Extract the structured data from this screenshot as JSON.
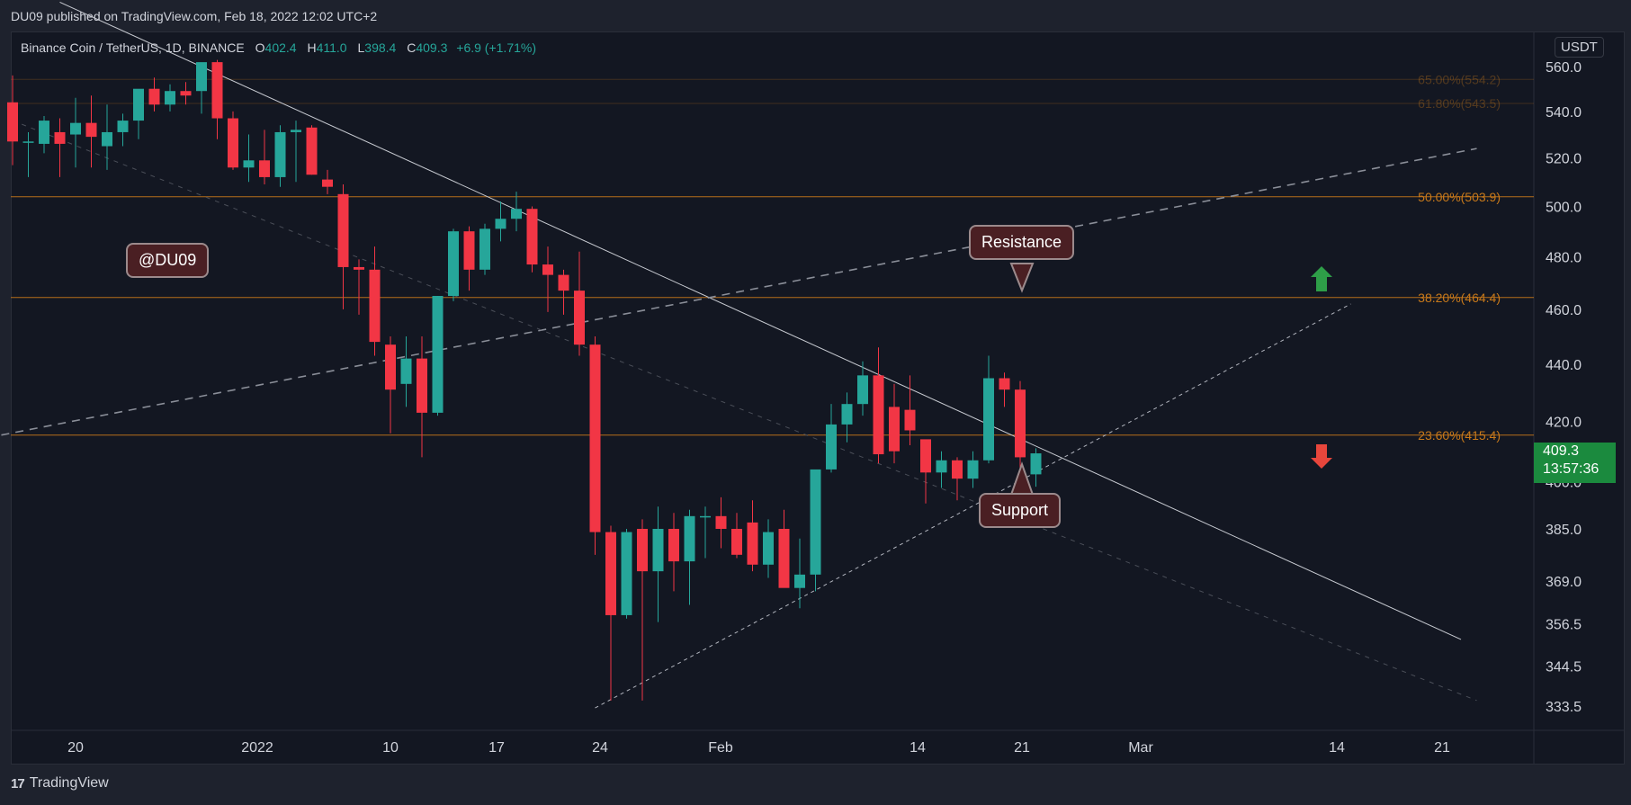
{
  "header": {
    "published": "DU09 published on TradingView.com, Feb 18, 2022 12:02 UTC+2",
    "symbol": "Binance Coin / TetherUS, 1D, BINANCE",
    "ohlc": {
      "o_label": "O",
      "o": "402.4",
      "h_label": "H",
      "h": "411.0",
      "l_label": "L",
      "l": "398.4",
      "c_label": "C",
      "c": "409.3",
      "change": "+6.9 (+1.71%)"
    }
  },
  "currency": "USDT",
  "footer": {
    "brand": "TradingView"
  },
  "watermark": "@DU09",
  "annotations": {
    "resistance": "Resistance",
    "support": "Support"
  },
  "last_price": {
    "price": "409.3",
    "countdown": "13:57:36"
  },
  "colors": {
    "up": "#26a69a",
    "down": "#f23645",
    "fib": "#c8791a",
    "background": "#131722"
  },
  "icons": {
    "up_arrow": "arrow-up-icon",
    "down_arrow": "arrow-down-icon"
  },
  "chart_data": {
    "type": "candlestick",
    "title": "Binance Coin / TetherUS, 1D, BINANCE",
    "xlabel": "",
    "ylabel": "",
    "y_scale": "log",
    "x_ticks": [
      "20",
      "2022",
      "10",
      "17",
      "24",
      "Feb",
      "14",
      "21",
      "Mar",
      "14",
      "21"
    ],
    "y_ticks": [
      "560.0",
      "540.0",
      "520.0",
      "500.0",
      "480.0",
      "460.0",
      "440.0",
      "420.0",
      "400.0",
      "385.0",
      "369.0",
      "356.5",
      "344.5",
      "333.5"
    ],
    "fib_levels": [
      {
        "label": "65.00%(554.2)",
        "value": 554.2
      },
      {
        "label": "61.80%(543.5)",
        "value": 543.5
      },
      {
        "label": "50.00%(503.9)",
        "value": 503.9
      },
      {
        "label": "38.20%(464.4)",
        "value": 464.4
      },
      {
        "label": "23.60%(415.4)",
        "value": 415.4
      }
    ],
    "candles": [
      {
        "date": "2021-12-17",
        "o": 544,
        "h": 556,
        "l": 517,
        "c": 527
      },
      {
        "date": "2021-12-18",
        "o": 527,
        "h": 531,
        "l": 512,
        "c": 527
      },
      {
        "date": "2021-12-19",
        "o": 526,
        "h": 538,
        "l": 522,
        "c": 536
      },
      {
        "date": "2021-12-20",
        "o": 531,
        "h": 537,
        "l": 512,
        "c": 526
      },
      {
        "date": "2021-12-21",
        "o": 530,
        "h": 546,
        "l": 516,
        "c": 535
      },
      {
        "date": "2021-12-22",
        "o": 535,
        "h": 547,
        "l": 516,
        "c": 529
      },
      {
        "date": "2021-12-23",
        "o": 525,
        "h": 543,
        "l": 515,
        "c": 531
      },
      {
        "date": "2021-12-24",
        "o": 531,
        "h": 539,
        "l": 525,
        "c": 536
      },
      {
        "date": "2021-12-25",
        "o": 536,
        "h": 548,
        "l": 528,
        "c": 550
      },
      {
        "date": "2021-12-26",
        "o": 550,
        "h": 555,
        "l": 540,
        "c": 543
      },
      {
        "date": "2021-12-27",
        "o": 543,
        "h": 552,
        "l": 540,
        "c": 549
      },
      {
        "date": "2021-12-28",
        "o": 549,
        "h": 553,
        "l": 543,
        "c": 547
      },
      {
        "date": "2021-12-29",
        "o": 549,
        "h": 561,
        "l": 539,
        "c": 562
      },
      {
        "date": "2021-12-30",
        "o": 562,
        "h": 563,
        "l": 528,
        "c": 537
      },
      {
        "date": "2021-12-31",
        "o": 537,
        "h": 540,
        "l": 515,
        "c": 516
      },
      {
        "date": "2022-01-01",
        "o": 516,
        "h": 530,
        "l": 510,
        "c": 519
      },
      {
        "date": "2022-01-02",
        "o": 519,
        "h": 532,
        "l": 509,
        "c": 512
      },
      {
        "date": "2022-01-03",
        "o": 512,
        "h": 534,
        "l": 508,
        "c": 531
      },
      {
        "date": "2022-01-04",
        "o": 531,
        "h": 536,
        "l": 510,
        "c": 532
      },
      {
        "date": "2022-01-05",
        "o": 533,
        "h": 534,
        "l": 513,
        "c": 513
      },
      {
        "date": "2022-01-06",
        "o": 511,
        "h": 515,
        "l": 505,
        "c": 508
      },
      {
        "date": "2022-01-07",
        "o": 505,
        "h": 509,
        "l": 460,
        "c": 476
      },
      {
        "date": "2022-01-08",
        "o": 476,
        "h": 479,
        "l": 458,
        "c": 475
      },
      {
        "date": "2022-01-09",
        "o": 475,
        "h": 484,
        "l": 443,
        "c": 448
      },
      {
        "date": "2022-01-10",
        "o": 447,
        "h": 450,
        "l": 416,
        "c": 431
      },
      {
        "date": "2022-01-11",
        "o": 433,
        "h": 450,
        "l": 425,
        "c": 442
      },
      {
        "date": "2022-01-12",
        "o": 442,
        "h": 450,
        "l": 408,
        "c": 423
      },
      {
        "date": "2022-01-13",
        "o": 423,
        "h": 465,
        "l": 422,
        "c": 465
      },
      {
        "date": "2022-01-14",
        "o": 465,
        "h": 491,
        "l": 463,
        "c": 490
      },
      {
        "date": "2022-01-15",
        "o": 490,
        "h": 492,
        "l": 467,
        "c": 475
      },
      {
        "date": "2022-01-16",
        "o": 475,
        "h": 493,
        "l": 473,
        "c": 491
      },
      {
        "date": "2022-01-17",
        "o": 491,
        "h": 502,
        "l": 486,
        "c": 495
      },
      {
        "date": "2022-01-18",
        "o": 495,
        "h": 506,
        "l": 490,
        "c": 499
      },
      {
        "date": "2022-01-19",
        "o": 499,
        "h": 500,
        "l": 474,
        "c": 477
      },
      {
        "date": "2022-01-20",
        "o": 477,
        "h": 484,
        "l": 459,
        "c": 473
      },
      {
        "date": "2022-01-21",
        "o": 473,
        "h": 475,
        "l": 458,
        "c": 467
      },
      {
        "date": "2022-01-22",
        "o": 467,
        "h": 482,
        "l": 443,
        "c": 447
      },
      {
        "date": "2022-01-23",
        "o": 447,
        "h": 450,
        "l": 377,
        "c": 384
      },
      {
        "date": "2022-01-24",
        "o": 384,
        "h": 386,
        "l": 335,
        "c": 359
      },
      {
        "date": "2022-01-25",
        "o": 359,
        "h": 385,
        "l": 358,
        "c": 384
      },
      {
        "date": "2022-01-26",
        "o": 385,
        "h": 388,
        "l": 335,
        "c": 372
      },
      {
        "date": "2022-01-27",
        "o": 372,
        "h": 392,
        "l": 357,
        "c": 385
      },
      {
        "date": "2022-01-28",
        "o": 385,
        "h": 390,
        "l": 366,
        "c": 375
      },
      {
        "date": "2022-01-29",
        "o": 375,
        "h": 391,
        "l": 362,
        "c": 389
      },
      {
        "date": "2022-01-30",
        "o": 389,
        "h": 392,
        "l": 376,
        "c": 389
      },
      {
        "date": "2022-01-31",
        "o": 389,
        "h": 395,
        "l": 379,
        "c": 385
      },
      {
        "date": "2022-02-01",
        "o": 385,
        "h": 390,
        "l": 376,
        "c": 377
      },
      {
        "date": "2022-02-02",
        "o": 387,
        "h": 394,
        "l": 372,
        "c": 374
      },
      {
        "date": "2022-02-03",
        "o": 374,
        "h": 388,
        "l": 370,
        "c": 384
      },
      {
        "date": "2022-02-04",
        "o": 385,
        "h": 391,
        "l": 368,
        "c": 367
      },
      {
        "date": "2022-02-05",
        "o": 367,
        "h": 382,
        "l": 361,
        "c": 371
      },
      {
        "date": "2022-02-06",
        "o": 371,
        "h": 402,
        "l": 366,
        "c": 404
      },
      {
        "date": "2022-02-07",
        "o": 404,
        "h": 426,
        "l": 403,
        "c": 419
      },
      {
        "date": "2022-02-08",
        "o": 419,
        "h": 430,
        "l": 413,
        "c": 426
      },
      {
        "date": "2022-02-09",
        "o": 426,
        "h": 441,
        "l": 422,
        "c": 436
      },
      {
        "date": "2022-02-10",
        "o": 436,
        "h": 446,
        "l": 406,
        "c": 409
      },
      {
        "date": "2022-02-11",
        "o": 425,
        "h": 433,
        "l": 406,
        "c": 410
      },
      {
        "date": "2022-02-12",
        "o": 424,
        "h": 436,
        "l": 412,
        "c": 417
      },
      {
        "date": "2022-02-13",
        "o": 414,
        "h": 413,
        "l": 393,
        "c": 403
      },
      {
        "date": "2022-02-14",
        "o": 403,
        "h": 410,
        "l": 398,
        "c": 407
      },
      {
        "date": "2022-02-15",
        "o": 407,
        "h": 408,
        "l": 394,
        "c": 401
      },
      {
        "date": "2022-02-16",
        "o": 401,
        "h": 410,
        "l": 398,
        "c": 407
      },
      {
        "date": "2022-02-17",
        "o": 407,
        "h": 443,
        "l": 406,
        "c": 435
      },
      {
        "date": "2022-02-18",
        "o": 435,
        "h": 437,
        "l": 425,
        "c": 431
      },
      {
        "date": "2022-02-19",
        "o": 431,
        "h": 434,
        "l": 402,
        "c": 408
      },
      {
        "date": "2022-02-20",
        "o": 402.4,
        "h": 411.0,
        "l": 398.4,
        "c": 409.3
      }
    ],
    "trendlines": [
      {
        "name": "descending-resistance",
        "style": "solid",
        "from": {
          "date": "2021-12-20",
          "price": 590
        },
        "to": {
          "date": "2022-03-19",
          "price": 352
        }
      },
      {
        "name": "ascending-support",
        "style": "dashed",
        "from": {
          "date": "2022-01-23",
          "price": 333
        },
        "to": {
          "date": "2022-03-12",
          "price": 462
        }
      },
      {
        "name": "rising-channel",
        "style": "dashed",
        "from": {
          "date": "2021-12-10",
          "price": 409
        },
        "to": {
          "date": "2022-03-20",
          "price": 524
        }
      },
      {
        "name": "faint-descending",
        "style": "dotted",
        "from": {
          "date": "2021-12-17",
          "price": 536
        },
        "to": {
          "date": "2022-03-20",
          "price": 335
        }
      }
    ]
  }
}
